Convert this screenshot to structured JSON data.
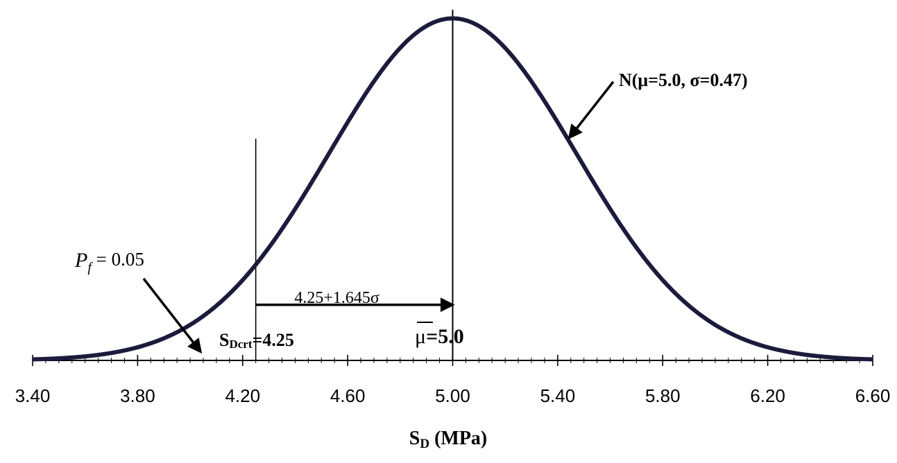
{
  "chart_data": {
    "type": "line",
    "distribution": "normal",
    "mean": 5.0,
    "sd": 0.47,
    "xlim": [
      3.4,
      6.6
    ],
    "ylim": [
      0,
      0.86
    ],
    "x_ticks": [
      "3.40",
      "3.80",
      "4.20",
      "4.60",
      "5.00",
      "5.40",
      "5.80",
      "6.20",
      "6.60"
    ],
    "x_tick_values": [
      3.4,
      3.8,
      4.2,
      4.6,
      5.0,
      5.4,
      5.8,
      6.2,
      6.6
    ],
    "minor_tick_step": 0.05,
    "grid": false,
    "xlabel_main": "S",
    "xlabel_sub": "D",
    "xlabel_unit": " (MPa)",
    "curve_color": "#1b1b3d",
    "vlines": [
      {
        "x": 4.25,
        "y_top": 0.55
      },
      {
        "x": 5.0,
        "y_top": 0.87
      }
    ],
    "dimension_arrow": {
      "x_from": 4.25,
      "x_to": 5.0,
      "y": 0.138,
      "label": "4.25+1.645σ"
    },
    "annotations": {
      "curve_label": "N(μ=5.0, σ=0.47)",
      "pf_symbol": "P",
      "pf_sub": "f",
      "pf_value": " = 0.05",
      "sdcrt_main": "S",
      "sdcrt_sub": "Dcrt",
      "sdcrt_value": "=4.25",
      "mu_symbol": "μ",
      "mu_value": "=5.0"
    }
  }
}
